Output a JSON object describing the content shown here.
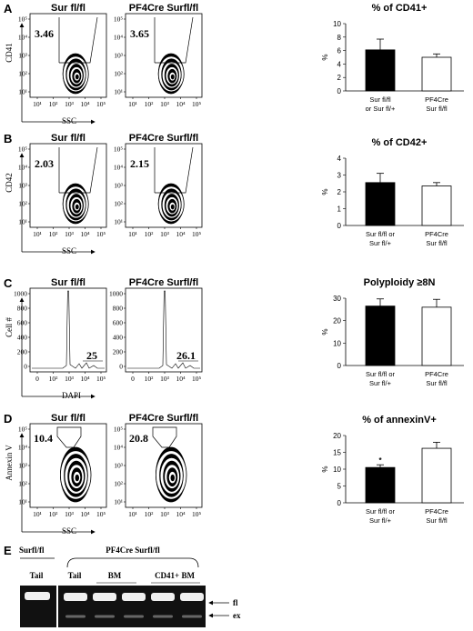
{
  "panels": [
    {
      "letter": "A",
      "flow_titles": [
        "Sur fl/fl",
        "PF4Cre Surfl/fl"
      ],
      "gate_values": [
        "3.46",
        "3.65"
      ],
      "y_axis_label": "CD41",
      "x_axis_label": "SSC",
      "tick_labels": [
        "10¹",
        "10²",
        "10³",
        "10⁴",
        "10⁵"
      ],
      "y_tick_labels": [
        "10¹",
        "10²",
        "10³",
        "10⁴",
        "10⁵"
      ]
    },
    {
      "letter": "B",
      "flow_titles": [
        "Sur fl/fl",
        "PF4Cre Surfl/fl"
      ],
      "gate_values": [
        "2.03",
        "2.15"
      ],
      "y_axis_label": "CD42",
      "x_axis_label": "SSC",
      "tick_labels": [
        "10¹",
        "10²",
        "10³",
        "10⁴",
        "10⁵"
      ],
      "y_tick_labels": [
        "10¹",
        "10²",
        "10³",
        "10⁴",
        "10⁵"
      ]
    },
    {
      "letter": "C",
      "flow_titles": [
        "Sur fl/fl",
        "PF4Cre Surfl/fl"
      ],
      "gate_values": [
        "25",
        "26.1"
      ],
      "y_axis_label": "Cell #",
      "x_axis_label": "DAPI",
      "tick_labels": [
        "0",
        "10²",
        "10³",
        "10⁴",
        "10⁵"
      ],
      "y_tick_labels": [
        "0",
        "200",
        "400",
        "600",
        "800",
        "1000"
      ]
    },
    {
      "letter": "D",
      "flow_titles": [
        "Sur fl/fl",
        "PF4Cre Surfl/fl"
      ],
      "gate_values": [
        "10.4",
        "20.8"
      ],
      "y_axis_label": "Annexin V",
      "x_axis_label": "SSC",
      "tick_labels": [
        "10¹",
        "10²",
        "10³",
        "10⁴",
        "10⁵"
      ],
      "y_tick_labels": [
        "10¹",
        "10²",
        "10³",
        "10⁴",
        "10⁵"
      ]
    }
  ],
  "chart_data": [
    {
      "type": "bar",
      "title": "% of CD41+",
      "ylabel": "%",
      "ylim": [
        0,
        10
      ],
      "yticks": [
        0,
        2,
        4,
        6,
        8,
        10
      ],
      "categories": [
        [
          "Sur fl/fl",
          "or Sur fl/+"
        ],
        [
          "PF4Cre",
          "Sur fl/fl"
        ]
      ],
      "values": [
        6.1,
        5.0
      ],
      "errors": [
        1.6,
        0.5
      ],
      "bar_colors": [
        "#000000",
        "#ffffff"
      ],
      "annotations": [
        "",
        ""
      ]
    },
    {
      "type": "bar",
      "title": "% of CD42+",
      "ylabel": "%",
      "ylim": [
        0,
        4
      ],
      "yticks": [
        0,
        1,
        2,
        3,
        4
      ],
      "categories": [
        [
          "Sur fl/fl or",
          "Sur fl/+"
        ],
        [
          "PF4Cre",
          "Sur fl/fl"
        ]
      ],
      "values": [
        2.55,
        2.35
      ],
      "errors": [
        0.55,
        0.2
      ],
      "bar_colors": [
        "#000000",
        "#ffffff"
      ],
      "annotations": [
        "",
        ""
      ]
    },
    {
      "type": "bar",
      "title": "Polyploidy ≥8N",
      "ylabel": "%",
      "ylim": [
        0,
        30
      ],
      "yticks": [
        0,
        10,
        20,
        30
      ],
      "categories": [
        [
          "Sur fl/fl or",
          "Sur fl/+"
        ],
        [
          "PF4Cre",
          "Sur fl/fl"
        ]
      ],
      "values": [
        26.5,
        26.0
      ],
      "errors": [
        3.2,
        3.5
      ],
      "bar_colors": [
        "#000000",
        "#ffffff"
      ],
      "annotations": [
        "",
        ""
      ]
    },
    {
      "type": "bar",
      "title": "% of annexinV+",
      "ylabel": "%",
      "ylim": [
        0,
        20
      ],
      "yticks": [
        0,
        5,
        10,
        15,
        20
      ],
      "categories": [
        [
          "Sur fl/fl or",
          "Sur fl/+"
        ],
        [
          "PF4Cre",
          "Sur fl/fl"
        ]
      ],
      "values": [
        10.5,
        16.2
      ],
      "errors": [
        0.8,
        1.8
      ],
      "bar_colors": [
        "#000000",
        "#ffffff"
      ],
      "annotations": [
        "*",
        ""
      ]
    }
  ],
  "gel": {
    "letter": "E",
    "group_left": "Surfl/fl",
    "group_right": "PF4Cre Surfl/fl",
    "lanes": [
      "Tail",
      "Tail",
      "BM",
      "CD41+ BM"
    ],
    "band_labels": [
      "fl",
      "ex"
    ]
  }
}
